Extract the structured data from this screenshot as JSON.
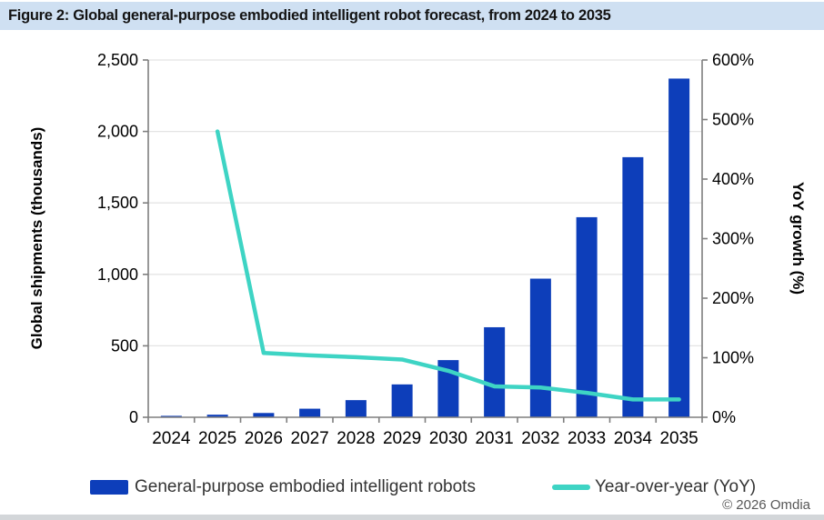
{
  "figure": {
    "title": "Figure 2: Global general-purpose embodied intelligent robot forecast, from 2024 to 2035"
  },
  "legend": {
    "items": [
      {
        "label": "General-purpose embodied intelligent robots",
        "swatch": "bar",
        "color": "#0d3eba"
      },
      {
        "label": "Year-over-year (YoY)",
        "swatch": "line",
        "color": "#3ed4c4"
      }
    ]
  },
  "footer": {
    "copyright": "© 2026 Omdia"
  },
  "colors": {
    "bar": "#0d3eba",
    "line": "#3ed4c4",
    "title_bar_background": "#cfe0f2",
    "axis": "#7f7f7f",
    "gridline": "#e4e4e4"
  },
  "chart_data": {
    "type": "bar+line",
    "subtype": "combo column chart with secondary-axis line",
    "title": "Figure 2: Global general-purpose embodied intelligent robot forecast, from 2024 to 2035",
    "categories": [
      "2024",
      "2025",
      "2026",
      "2027",
      "2028",
      "2029",
      "2030",
      "2031",
      "2032",
      "2033",
      "2034",
      "2035"
    ],
    "series": [
      {
        "name": "General-purpose embodied intelligent robots",
        "type": "bar",
        "axis": "left",
        "color": "#0d3eba",
        "values": [
          10,
          18,
          30,
          60,
          120,
          230,
          400,
          630,
          970,
          1400,
          1820,
          2370
        ]
      },
      {
        "name": "Year-over-year (YoY)",
        "type": "line",
        "axis": "right",
        "color": "#3ed4c4",
        "values": [
          null,
          480,
          108,
          104,
          101,
          97,
          78,
          52,
          50,
          41,
          30,
          30
        ]
      }
    ],
    "left_axis": {
      "label": "Global shipments (thousands)",
      "min": 0,
      "max": 2500,
      "tick_step": 500,
      "tick_values": [
        0,
        500,
        1000,
        1500,
        2000,
        2500
      ],
      "tick_labels": [
        "0",
        "500",
        "1,000",
        "1,500",
        "2,000",
        "2,500"
      ]
    },
    "right_axis": {
      "label": "YoY growth (%)",
      "min": 0,
      "max": 600,
      "tick_step": 100,
      "tick_values": [
        0,
        100,
        200,
        300,
        400,
        500,
        600
      ],
      "tick_labels": [
        "0%",
        "100%",
        "200%",
        "300%",
        "400%",
        "500%",
        "600%"
      ]
    },
    "grid": "horizontal light-gray lines at left-axis ticks",
    "legend_position": "bottom",
    "source_note": "© 2026 Omdia"
  }
}
